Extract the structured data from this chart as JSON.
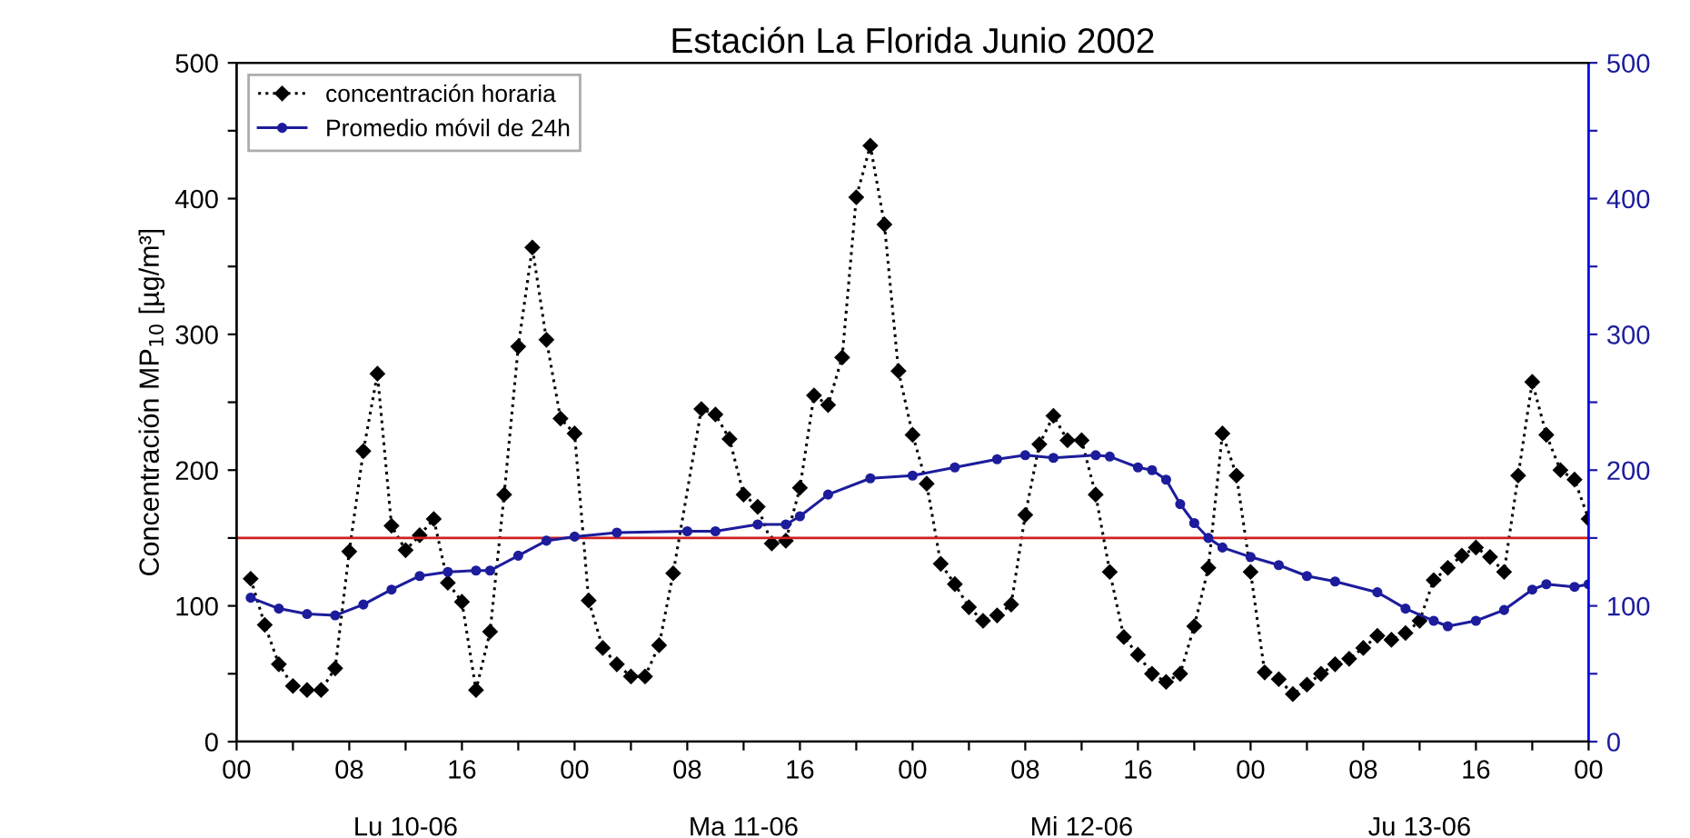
{
  "chart_data": {
    "type": "line",
    "title": "Estación La Florida Junio 2002",
    "ylabel": "Concentración MP$_{10}$ [µg/m³]",
    "xlim": [
      0,
      96
    ],
    "xticks": [
      {
        "value": 0,
        "label": "00"
      },
      {
        "value": 4,
        "label": null
      },
      {
        "value": 8,
        "label": "08"
      },
      {
        "value": 12,
        "label": null
      },
      16,
      {
        "value": 20,
        "label": null
      },
      {
        "value": 24,
        "label": "00"
      },
      {
        "value": 28,
        "label": null
      },
      {
        "value": 32,
        "label": "08"
      },
      {
        "value": 36,
        "label": null
      },
      {
        "value": 40,
        "label": "16"
      },
      {
        "value": 44,
        "label": null
      },
      {
        "value": 48,
        "label": "00"
      },
      {
        "value": 52,
        "label": null
      },
      {
        "value": 56,
        "label": "08"
      },
      {
        "value": 60,
        "label": null
      },
      {
        "value": 64,
        "label": "16"
      },
      {
        "value": 68,
        "label": null
      },
      {
        "value": 72,
        "label": "00"
      },
      {
        "value": 76,
        "label": null
      },
      {
        "value": 80,
        "label": "08"
      },
      {
        "value": 84,
        "label": null
      },
      {
        "value": 88,
        "label": "16"
      },
      {
        "value": 92,
        "label": null
      },
      {
        "value": 96,
        "label": "00"
      }
    ],
    "ylim": [
      0,
      500
    ],
    "yticks": [
      0,
      {
        "value": 50,
        "label": null
      },
      100,
      {
        "value": 150,
        "label": null
      },
      200,
      {
        "value": 250,
        "label": null
      },
      300,
      {
        "value": 350,
        "label": null
      },
      400,
      {
        "value": 450,
        "label": null
      },
      500
    ],
    "y2lim": [
      0,
      500
    ],
    "y2ticks": [
      0,
      {
        "value": 50,
        "label": null
      },
      100,
      {
        "value": 150,
        "label": null
      },
      200,
      {
        "value": 250,
        "label": null
      },
      300,
      {
        "value": 350,
        "label": null
      },
      400,
      {
        "value": 450,
        "label": null
      },
      500
    ],
    "series": [
      {
        "name": "concentración horaria",
        "color": "#000000",
        "marker": "diamond",
        "line_style": "dotted",
        "x": [
          1,
          2,
          3,
          4,
          5,
          6,
          7,
          8,
          9,
          10,
          11,
          12,
          13,
          14,
          15,
          16,
          17,
          18,
          19,
          20,
          21,
          22,
          23,
          24,
          25,
          26,
          27,
          28,
          29,
          30,
          31,
          33,
          34,
          35,
          36,
          37,
          38,
          39,
          40,
          41,
          42,
          43,
          44,
          45,
          46,
          47,
          48,
          49,
          50,
          51,
          52,
          53,
          54,
          55,
          56,
          57,
          58,
          59,
          60,
          61,
          62,
          63,
          64,
          65,
          66,
          67,
          68,
          69,
          70,
          71,
          72,
          73,
          74,
          75,
          76,
          77,
          78,
          79,
          80,
          81,
          82,
          83,
          84,
          85,
          86,
          87,
          88,
          89,
          90,
          91,
          92,
          93,
          94,
          95,
          96
        ],
        "values": [
          120,
          86,
          57,
          41,
          38,
          38,
          54,
          140,
          214,
          271,
          159,
          141,
          152,
          164,
          117,
          103,
          38,
          81,
          182,
          291,
          364,
          296,
          238,
          227,
          104,
          69,
          57,
          48,
          48,
          71,
          124,
          245,
          241,
          223,
          182,
          173,
          146,
          148,
          187,
          255,
          248,
          283,
          401,
          439,
          381,
          273,
          226,
          190,
          131,
          116,
          99,
          89,
          93,
          101,
          167,
          219,
          240,
          222,
          222,
          182,
          125,
          77,
          64,
          50,
          44,
          50,
          85,
          128,
          227,
          196,
          125,
          51,
          46,
          35,
          42,
          50,
          57,
          61,
          69,
          78,
          75,
          80,
          89,
          119,
          128,
          137,
          143,
          136,
          125,
          196,
          265,
          226,
          200,
          193,
          164
        ]
      },
      {
        "name": "Promedio móvil de 24h",
        "color": "#1c1c9c",
        "marker": "circle",
        "line_style": "solid",
        "axis": "y2",
        "x": [
          1,
          3,
          5,
          7,
          9,
          11,
          13,
          15,
          17,
          18,
          20,
          22,
          24,
          27,
          32,
          34,
          37,
          39,
          40,
          42,
          45,
          48,
          51,
          54,
          56,
          58,
          61,
          62,
          64,
          65,
          66,
          67,
          68,
          69,
          70,
          72,
          74,
          76,
          78,
          81,
          83,
          85,
          86,
          88,
          90,
          92,
          93,
          95,
          96
        ],
        "values": [
          106,
          98,
          94,
          93,
          101,
          112,
          122,
          125,
          126,
          126,
          137,
          148,
          151,
          154,
          155,
          155,
          160,
          160,
          166,
          182,
          194,
          196,
          202,
          208,
          211,
          209,
          211,
          210,
          202,
          200,
          193,
          175,
          161,
          150,
          143,
          136,
          130,
          122,
          118,
          110,
          98,
          89,
          85,
          89,
          97,
          112,
          116,
          114,
          116
        ]
      }
    ],
    "ref_lines": [
      {
        "axis": "y",
        "value": 150,
        "color": "#d02020",
        "line_style": "solid"
      }
    ],
    "annotations": [
      "Lu 10-06",
      "Ma 11-06",
      "Mi 12-06",
      "Ju 13-06"
    ],
    "legend": "top left",
    "grid": false
  }
}
